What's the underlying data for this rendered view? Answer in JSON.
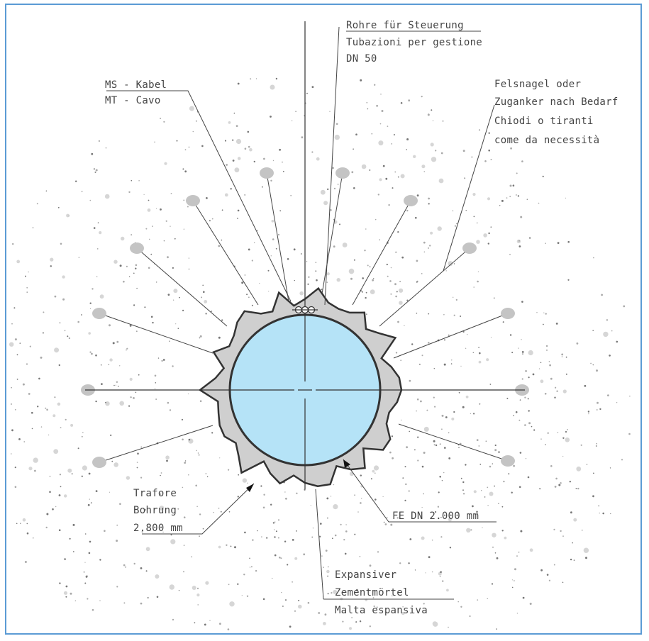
{
  "labels": {
    "steuer": [
      "Rohre für Steuerung",
      "Tubazioni per gestione",
      "DN 50"
    ],
    "kabel": [
      "MS - Kabel",
      "MT - Cavo"
    ],
    "felsnagel": [
      "Felsnagel oder",
      "Zuganker nach Bedarf",
      "Chiodi o tiranti",
      "come da necessità"
    ],
    "bohrung": [
      "Trafore",
      "Bohrung",
      "2.800 mm"
    ],
    "fe": "FE DN 2.000 mm",
    "zement": [
      "Expansiver",
      "Zementmörtel",
      "Malta espansiva"
    ]
  },
  "colors": {
    "frame_border": "#5b9bd5",
    "pipe_fill": "#b5e3f7",
    "mortar_fill": "#cfcfcf",
    "nail_head": "#c4c4c4",
    "line": "#3a3a3a"
  }
}
